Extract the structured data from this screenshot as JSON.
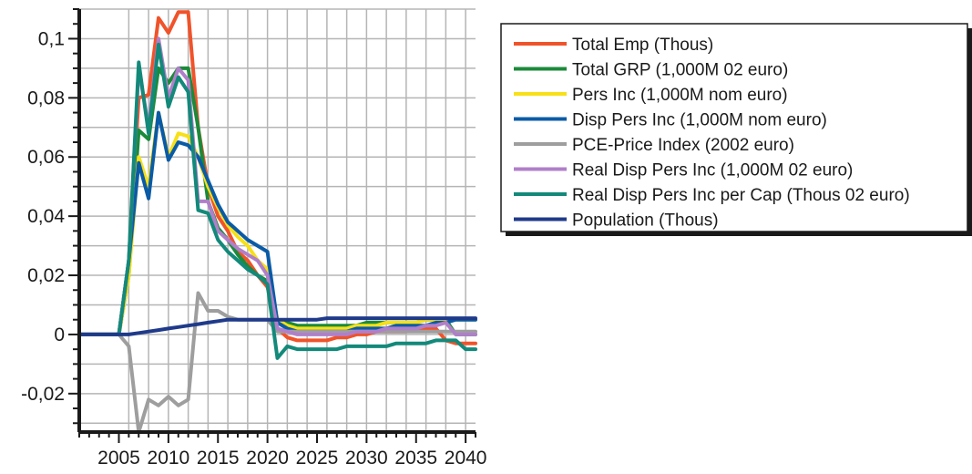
{
  "chart_data": {
    "type": "line",
    "title": "",
    "xlabel": "",
    "ylabel": "",
    "xlim": [
      2001,
      2041
    ],
    "ylim": [
      -0.033,
      0.11
    ],
    "grid": true,
    "legend_position": "top-right",
    "x_tick_labels": [
      "2005",
      "2010",
      "2015",
      "2020",
      "2025",
      "2030",
      "2035",
      "2040"
    ],
    "x_tick_values": [
      2005,
      2010,
      2015,
      2020,
      2025,
      2030,
      2035,
      2040
    ],
    "y_tick_labels": [
      "0,1",
      "0,08",
      "0,06",
      "0,04",
      "0,02",
      "0",
      "-0,02"
    ],
    "y_tick_values": [
      0.1,
      0.08,
      0.06,
      0.04,
      0.02,
      0,
      -0.02
    ],
    "x": [
      2001,
      2002,
      2003,
      2004,
      2005,
      2006,
      2007,
      2008,
      2009,
      2010,
      2011,
      2012,
      2013,
      2014,
      2015,
      2016,
      2017,
      2018,
      2019,
      2020,
      2021,
      2022,
      2023,
      2024,
      2025,
      2026,
      2027,
      2028,
      2029,
      2030,
      2031,
      2032,
      2033,
      2034,
      2035,
      2036,
      2037,
      2038,
      2039,
      2040,
      2041
    ],
    "series": [
      {
        "name": "Total Emp (Thous)",
        "color": "#f0532a",
        "values": [
          0,
          0,
          0,
          0,
          0,
          0.025,
          0.08,
          0.081,
          0.107,
          0.102,
          0.109,
          0.109,
          0.07,
          0.05,
          0.04,
          0.035,
          0.028,
          0.025,
          0.02,
          0.016,
          0.002,
          -0.001,
          -0.002,
          -0.002,
          -0.002,
          -0.002,
          -0.001,
          -0.001,
          0,
          0,
          0.001,
          0.001,
          0.001,
          0.001,
          0.002,
          0.002,
          0.002,
          -0.002,
          -0.003,
          -0.003,
          -0.003
        ]
      },
      {
        "name": "Total GRP (1,000M 02 euro)",
        "color": "#1b8a3a",
        "values": [
          0,
          0,
          0,
          0,
          0,
          0.02,
          0.069,
          0.066,
          0.09,
          0.085,
          0.09,
          0.09,
          0.07,
          0.045,
          0.036,
          0.032,
          0.027,
          0.023,
          0.02,
          0.018,
          0.005,
          0.004,
          0.003,
          0.003,
          0.003,
          0.003,
          0.003,
          0.003,
          0.003,
          0.004,
          0.004,
          0.004,
          0.004,
          0.004,
          0.004,
          0.005,
          0.005,
          0.005,
          0,
          0,
          0
        ]
      },
      {
        "name": "Pers Inc (1,000M nom euro)",
        "color": "#f7e017",
        "values": [
          0,
          0,
          0,
          0,
          0,
          0.02,
          0.06,
          0.05,
          0.075,
          0.06,
          0.068,
          0.067,
          0.06,
          0.05,
          0.043,
          0.037,
          0.033,
          0.03,
          0.025,
          0.022,
          0.005,
          0.003,
          0.002,
          0.002,
          0.002,
          0.002,
          0.002,
          0.002,
          0.003,
          0.003,
          0.003,
          0.004,
          0.004,
          0.004,
          0.004,
          0.005,
          0.005,
          0.005,
          0.005,
          0.005,
          0.005
        ]
      },
      {
        "name": "Disp Pers Inc (1,000M nom euro)",
        "color": "#0a5ba6",
        "values": [
          0,
          0,
          0,
          0,
          0,
          0.025,
          0.058,
          0.046,
          0.075,
          0.059,
          0.065,
          0.064,
          0.06,
          0.052,
          0.044,
          0.038,
          0.035,
          0.032,
          0.03,
          0.028,
          0.004,
          0.002,
          0.001,
          0.001,
          0.001,
          0.001,
          0.001,
          0.001,
          0.002,
          0.002,
          0.002,
          0.002,
          0.003,
          0.003,
          0.003,
          0.003,
          0.004,
          0.004,
          0.005,
          0.005,
          0.005
        ]
      },
      {
        "name": "PCE-Price Index (2002 euro)",
        "color": "#9e9e9e",
        "values": [
          0,
          0,
          0,
          0,
          0,
          -0.004,
          -0.033,
          -0.022,
          -0.024,
          -0.021,
          -0.024,
          -0.022,
          0.014,
          0.008,
          0.008,
          0.006,
          0.005,
          0.005,
          0.005,
          0.005,
          0.001,
          0.001,
          0.001,
          0.001,
          0.001,
          0.001,
          0.001,
          0.001,
          0.001,
          0.001,
          0.001,
          0.001,
          0.001,
          0.001,
          0.001,
          0.001,
          0.001,
          0.001,
          0.001,
          0.001,
          0.001
        ]
      },
      {
        "name": "Real Disp Pers Inc (1,000M 02 euro)",
        "color": "#b07fc9",
        "values": [
          0,
          0,
          0,
          0,
          0,
          0.025,
          0.09,
          0.07,
          0.1,
          0.08,
          0.09,
          0.086,
          0.045,
          0.045,
          0.035,
          0.032,
          0.029,
          0.027,
          0.025,
          0.02,
          0.002,
          0.001,
          0,
          0,
          0,
          0,
          0,
          0,
          0.001,
          0.001,
          0.001,
          0.002,
          0.002,
          0.002,
          0.002,
          0.003,
          0.003,
          0.004,
          0,
          0,
          0
        ]
      },
      {
        "name": "Real Disp Pers Inc per Cap (Thous 02 euro)",
        "color": "#13897a",
        "values": [
          0,
          0,
          0,
          0,
          0,
          0.025,
          0.092,
          0.068,
          0.098,
          0.077,
          0.087,
          0.082,
          0.042,
          0.041,
          0.032,
          0.028,
          0.025,
          0.022,
          0.02,
          0.017,
          -0.008,
          -0.004,
          -0.005,
          -0.005,
          -0.005,
          -0.005,
          -0.005,
          -0.004,
          -0.004,
          -0.004,
          -0.004,
          -0.004,
          -0.003,
          -0.003,
          -0.003,
          -0.003,
          -0.002,
          -0.002,
          -0.002,
          -0.005,
          -0.005
        ]
      },
      {
        "name": "Population (Thous)",
        "color": "#1f3a8a",
        "values": [
          0,
          0,
          0,
          0,
          0,
          0,
          0.0005,
          0.001,
          0.0015,
          0.002,
          0.0025,
          0.003,
          0.0035,
          0.004,
          0.0045,
          0.005,
          0.005,
          0.005,
          0.005,
          0.005,
          0.005,
          0.005,
          0.005,
          0.005,
          0.005,
          0.0055,
          0.0055,
          0.0055,
          0.0055,
          0.0055,
          0.0055,
          0.0055,
          0.0055,
          0.0055,
          0.0055,
          0.0055,
          0.0055,
          0.0055,
          0.0055,
          0.0055,
          0.0055
        ]
      }
    ]
  }
}
